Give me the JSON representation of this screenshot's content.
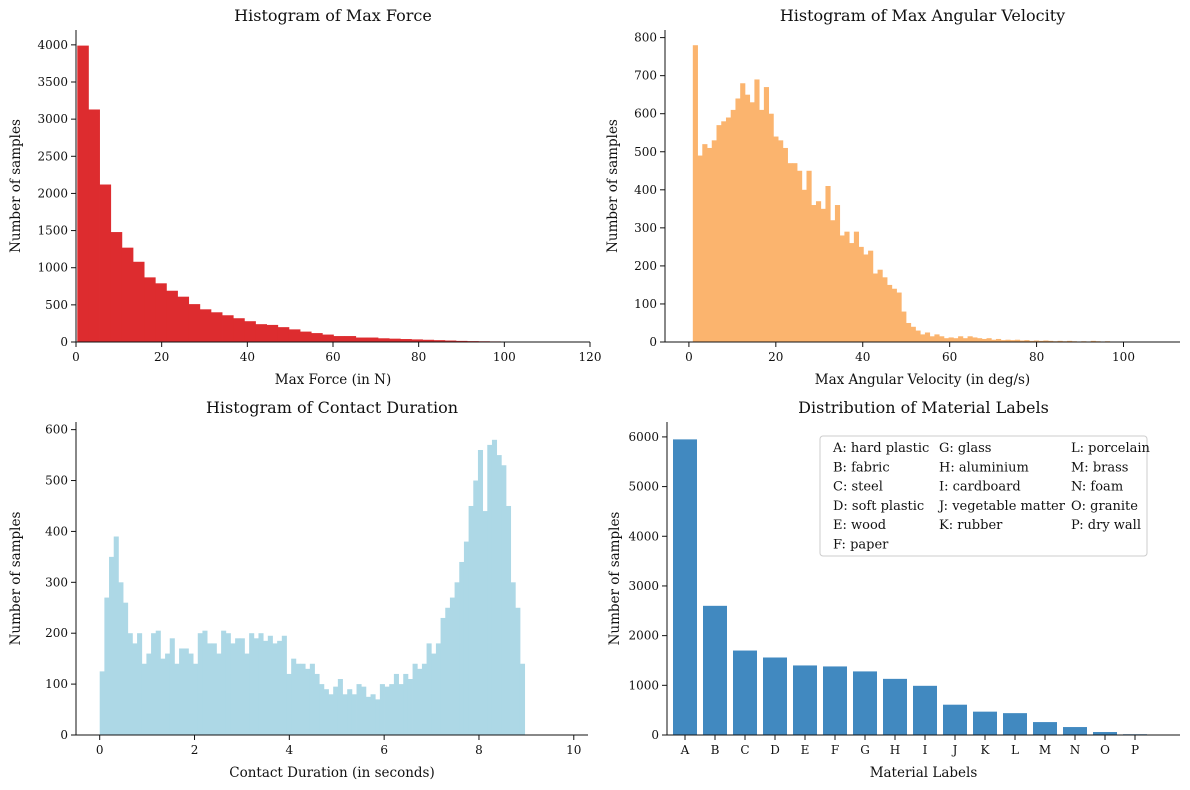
{
  "chart_data": [
    {
      "type": "bar",
      "subtype": "histogram",
      "title": "Histogram of Max Force",
      "xlabel": "Max Force (in N)",
      "ylabel": "Number of samples",
      "color": "#dd2c2f",
      "xlim": [
        0,
        120
      ],
      "ylim": [
        0,
        4200
      ],
      "xticks": [
        0,
        20,
        40,
        60,
        80,
        100,
        120
      ],
      "yticks": [
        0,
        500,
        1000,
        1500,
        2000,
        2500,
        3000,
        3500,
        4000
      ],
      "bin_start": 0.3,
      "bin_width": 2.6,
      "values": [
        3990,
        3130,
        2120,
        1480,
        1270,
        1080,
        870,
        790,
        690,
        610,
        510,
        440,
        400,
        360,
        320,
        280,
        240,
        230,
        200,
        170,
        140,
        120,
        100,
        80,
        80,
        60,
        60,
        50,
        45,
        40,
        35,
        30,
        25,
        20,
        15,
        12,
        10,
        8,
        6,
        4
      ]
    },
    {
      "type": "bar",
      "subtype": "histogram",
      "title": "Histogram of Max Angular Velocity",
      "xlabel": "Max Angular Velocity (in deg/s)",
      "ylabel": "Number of samples",
      "color": "#fbb46e",
      "xlim": [
        -5.5,
        113
      ],
      "ylim": [
        0,
        820
      ],
      "xticks": [
        0,
        20,
        40,
        60,
        80,
        100
      ],
      "yticks": [
        0,
        100,
        200,
        300,
        400,
        500,
        600,
        700,
        800
      ],
      "bin_start": 0.9,
      "bin_width": 1.09,
      "values": [
        780,
        490,
        520,
        510,
        530,
        570,
        580,
        590,
        610,
        640,
        680,
        650,
        630,
        690,
        610,
        670,
        600,
        540,
        530,
        510,
        470,
        470,
        450,
        400,
        450,
        360,
        370,
        350,
        410,
        320,
        360,
        280,
        290,
        260,
        290,
        250,
        230,
        240,
        180,
        190,
        170,
        150,
        140,
        130,
        80,
        50,
        40,
        30,
        20,
        25,
        15,
        20,
        15,
        10,
        12,
        10,
        15,
        10,
        15,
        12,
        10,
        8,
        10,
        6,
        8,
        5,
        6,
        5,
        6,
        4,
        5,
        3,
        4,
        3,
        4,
        3,
        2,
        3,
        2,
        3,
        2,
        1,
        2,
        1,
        3,
        2,
        1,
        2,
        1,
        1,
        1,
        1,
        1,
        0,
        1,
        1,
        0,
        1,
        0,
        1
      ]
    },
    {
      "type": "bar",
      "subtype": "histogram",
      "title": "Histogram of Contact Duration",
      "xlabel": "Contact Duration (in seconds)",
      "ylabel": "Number of samples",
      "color": "#add8e6",
      "xlim": [
        -0.5,
        10.3
      ],
      "ylim": [
        0,
        615
      ],
      "xticks": [
        0,
        2,
        4,
        6,
        8,
        10
      ],
      "yticks": [
        0,
        100,
        200,
        300,
        400,
        500,
        600
      ],
      "bin_start": 0.0,
      "bin_width": 0.0985,
      "values": [
        125,
        270,
        350,
        390,
        300,
        260,
        200,
        180,
        200,
        140,
        160,
        200,
        205,
        150,
        160,
        190,
        140,
        170,
        170,
        160,
        140,
        200,
        205,
        180,
        180,
        160,
        205,
        200,
        180,
        190,
        190,
        160,
        200,
        190,
        200,
        185,
        195,
        180,
        185,
        195,
        120,
        150,
        140,
        140,
        130,
        140,
        120,
        100,
        90,
        80,
        95,
        110,
        80,
        90,
        80,
        100,
        95,
        75,
        80,
        70,
        100,
        95,
        100,
        120,
        100,
        120,
        110,
        140,
        130,
        140,
        180,
        160,
        180,
        230,
        250,
        270,
        300,
        340,
        380,
        450,
        500,
        560,
        440,
        570,
        580,
        550,
        530,
        450,
        300,
        250,
        140
      ]
    },
    {
      "type": "bar",
      "title": "Distribution of Material Labels",
      "xlabel": "Material Labels",
      "ylabel": "Number of samples",
      "color": "#4189c0",
      "ylim": [
        0,
        6300
      ],
      "yticks": [
        0,
        1000,
        2000,
        3000,
        4000,
        5000,
        6000
      ],
      "categories": [
        "A",
        "B",
        "C",
        "D",
        "E",
        "F",
        "G",
        "H",
        "I",
        "J",
        "K",
        "L",
        "M",
        "N",
        "O",
        "P"
      ],
      "values": [
        5950,
        2600,
        1700,
        1560,
        1400,
        1380,
        1280,
        1130,
        990,
        610,
        470,
        440,
        260,
        160,
        60,
        15
      ],
      "legend": [
        [
          "A: hard plastic",
          "B: fabric",
          "C: steel",
          "D: soft plastic",
          "E: wood",
          "F: paper"
        ],
        [
          "G: glass",
          "H: aluminium",
          "I: cardboard",
          "J: vegetable matter",
          "K: rubber"
        ],
        [
          "L: porcelain",
          "M: brass",
          "N: foam",
          "O: granite",
          "P: dry wall"
        ]
      ]
    }
  ]
}
